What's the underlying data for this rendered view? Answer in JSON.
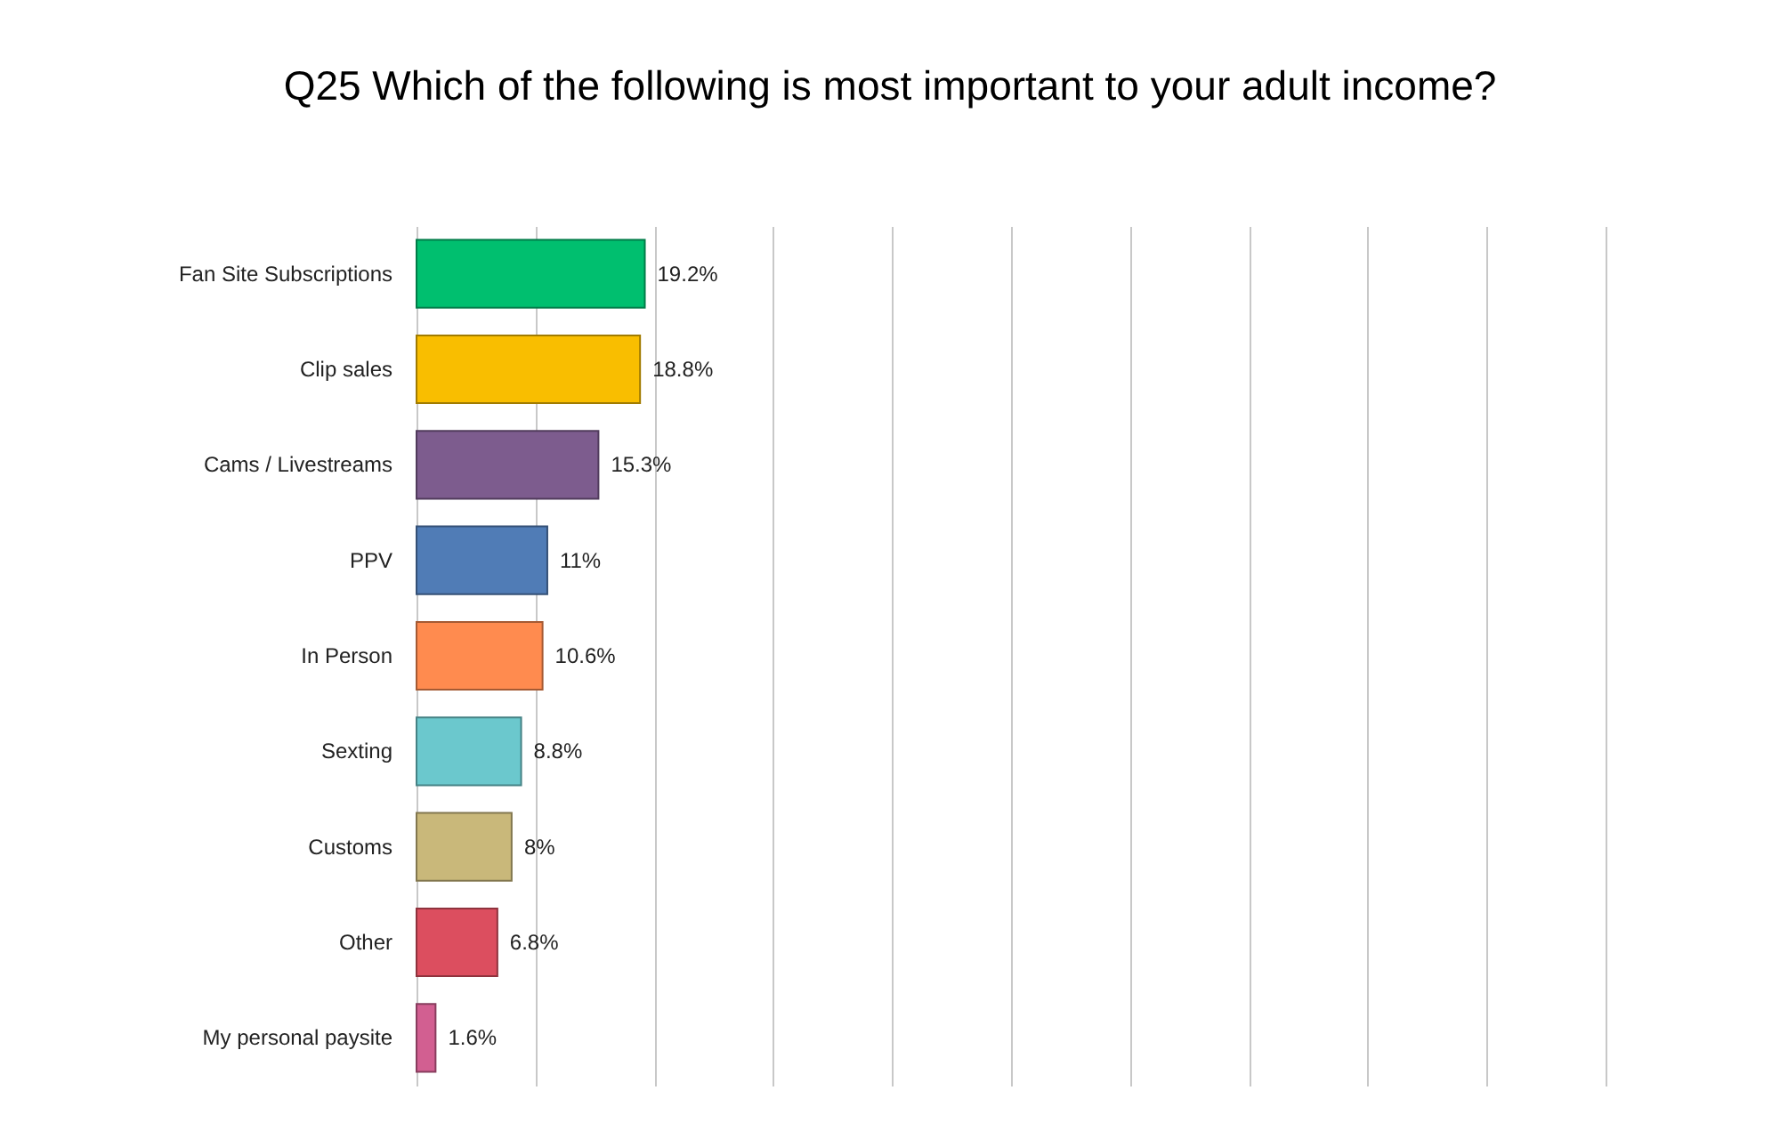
{
  "chart_data": {
    "type": "bar",
    "orientation": "horizontal",
    "title": "Q25 Which of the following is most important to your adult income?",
    "categories": [
      "Fan Site Subscriptions",
      "Clip sales",
      "Cams / Livestreams",
      "PPV",
      "In Person",
      "Sexting",
      "Customs",
      "Other",
      "My personal paysite"
    ],
    "values": [
      19.2,
      18.8,
      15.3,
      11,
      10.6,
      8.8,
      8,
      6.8,
      1.6
    ],
    "value_labels": [
      "19.2%",
      "18.8%",
      "15.3%",
      "11%",
      "10.6%",
      "8.8%",
      "8%",
      "6.8%",
      "1.6%"
    ],
    "colors": [
      "#00bf6f",
      "#f9be00",
      "#7d5c8e",
      "#507cb6",
      "#ff8b4f",
      "#6bc8cd",
      "#c9b87a",
      "#dc4e5f",
      "#d25f91"
    ],
    "xlim": [
      0,
      100
    ],
    "xticks": [
      0,
      10,
      20,
      30,
      40,
      50,
      60,
      70,
      80,
      90,
      100
    ],
    "grid": "x",
    "tick_labels": "y"
  }
}
